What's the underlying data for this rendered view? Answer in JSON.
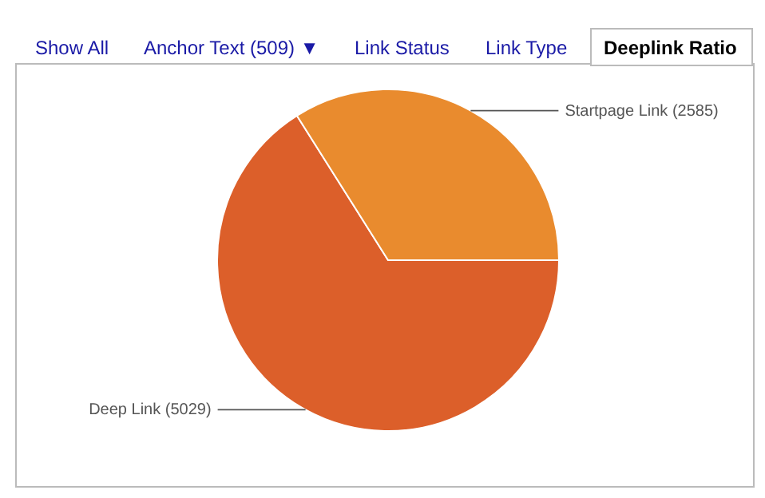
{
  "chart_data": {
    "type": "pie",
    "categories": [
      "Startpage Link (2585)",
      "Deep Link (5029)"
    ],
    "values": [
      2585,
      5029
    ],
    "colors": [
      "#e98b2e",
      "#dc5f2a"
    ],
    "annotations": [
      "Show All",
      "Anchor Text (509) ▼",
      "Link Status",
      "Link Type",
      "Deeplink Ratio"
    ]
  }
}
